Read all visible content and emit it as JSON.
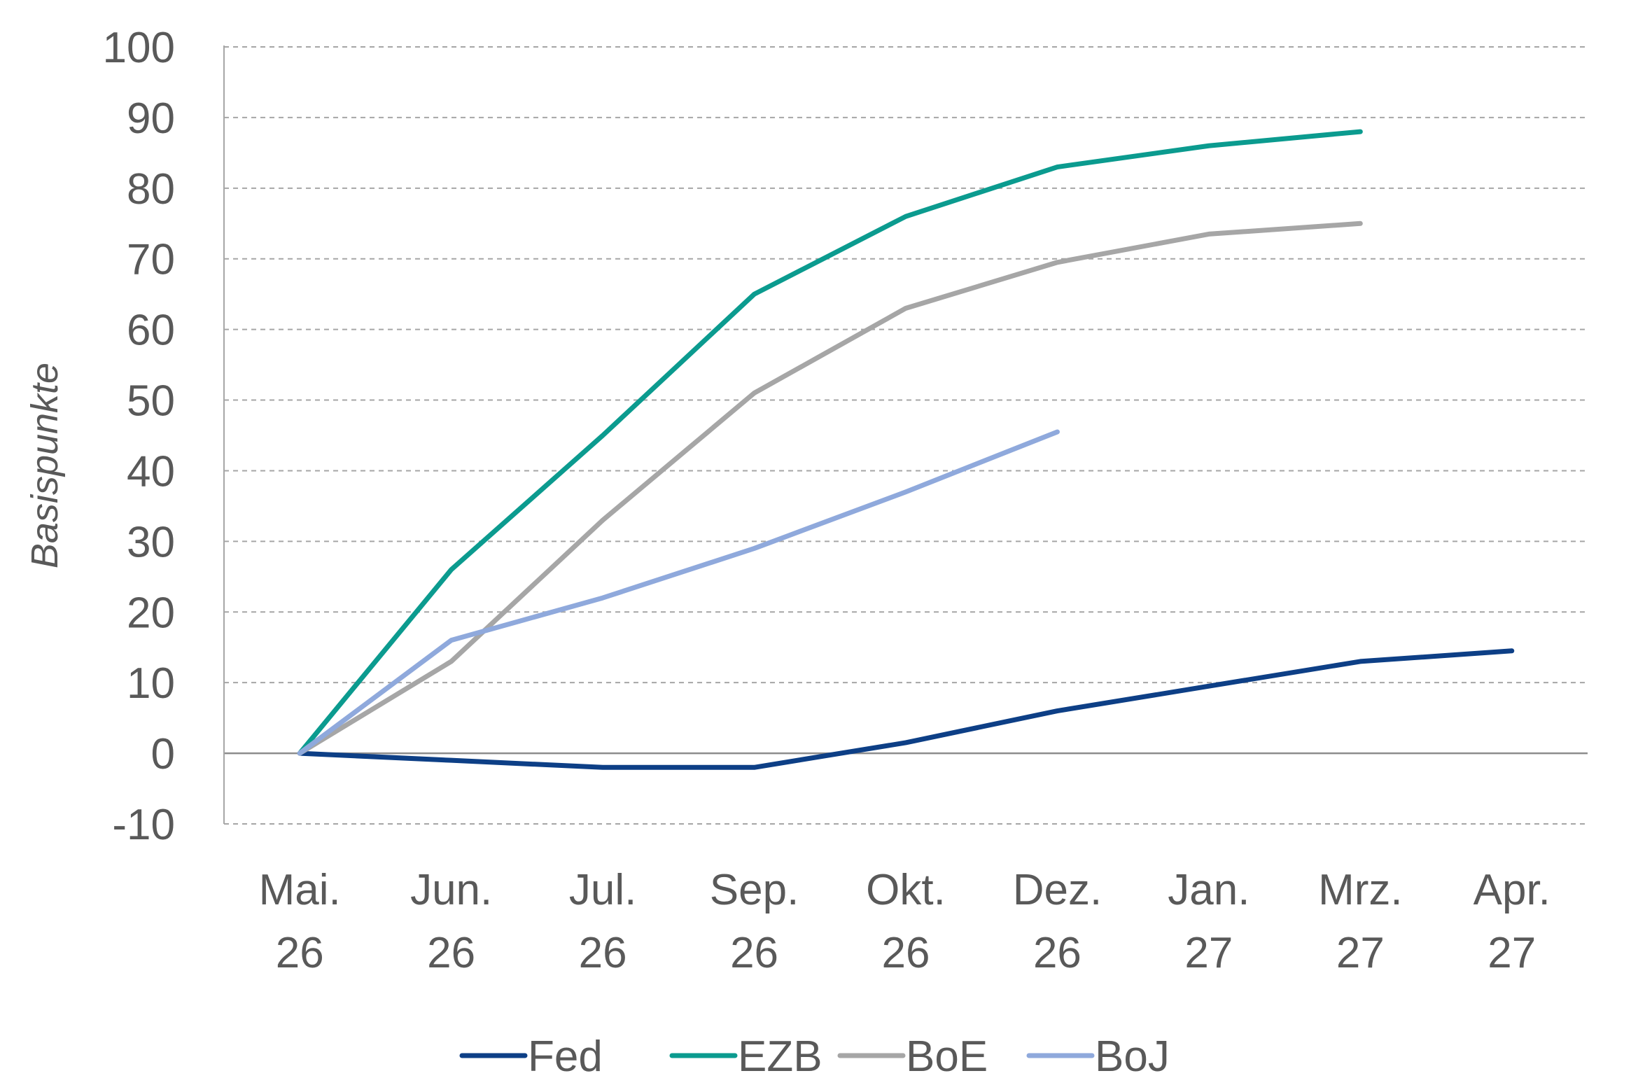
{
  "chart_data": {
    "type": "line",
    "title": "",
    "xlabel": "",
    "ylabel": "Basispunkte",
    "ylim": [
      -10,
      100
    ],
    "y_ticks": [
      100,
      90,
      80,
      70,
      60,
      50,
      40,
      30,
      20,
      10,
      0,
      -10
    ],
    "categories": [
      [
        "Mai.",
        "26"
      ],
      [
        "Jun.",
        "26"
      ],
      [
        "Jul.",
        "26"
      ],
      [
        "Sep.",
        "26"
      ],
      [
        "Okt.",
        "26"
      ],
      [
        "Dez.",
        "26"
      ],
      [
        "Jan.",
        "27"
      ],
      [
        "Mrz.",
        "27"
      ],
      [
        "Apr.",
        "27"
      ]
    ],
    "grid": "horizontal dashed",
    "legend_position": "bottom",
    "series": [
      {
        "name": "Fed",
        "color": "#0d3f86",
        "values": [
          0,
          -1,
          -2,
          -2,
          1.5,
          6,
          9.5,
          13,
          14.5
        ]
      },
      {
        "name": "EZB",
        "color": "#0b9b8f",
        "values": [
          0,
          26,
          45,
          65,
          76,
          83,
          86,
          88,
          null
        ]
      },
      {
        "name": "BoE",
        "color": "#a6a6a6",
        "values": [
          0,
          13,
          33,
          51,
          63,
          69.5,
          73.5,
          75,
          null
        ]
      },
      {
        "name": "BoJ",
        "color": "#8fa9dc",
        "values": [
          0,
          16,
          22,
          29,
          37,
          45.5,
          null,
          null,
          null
        ]
      }
    ]
  }
}
